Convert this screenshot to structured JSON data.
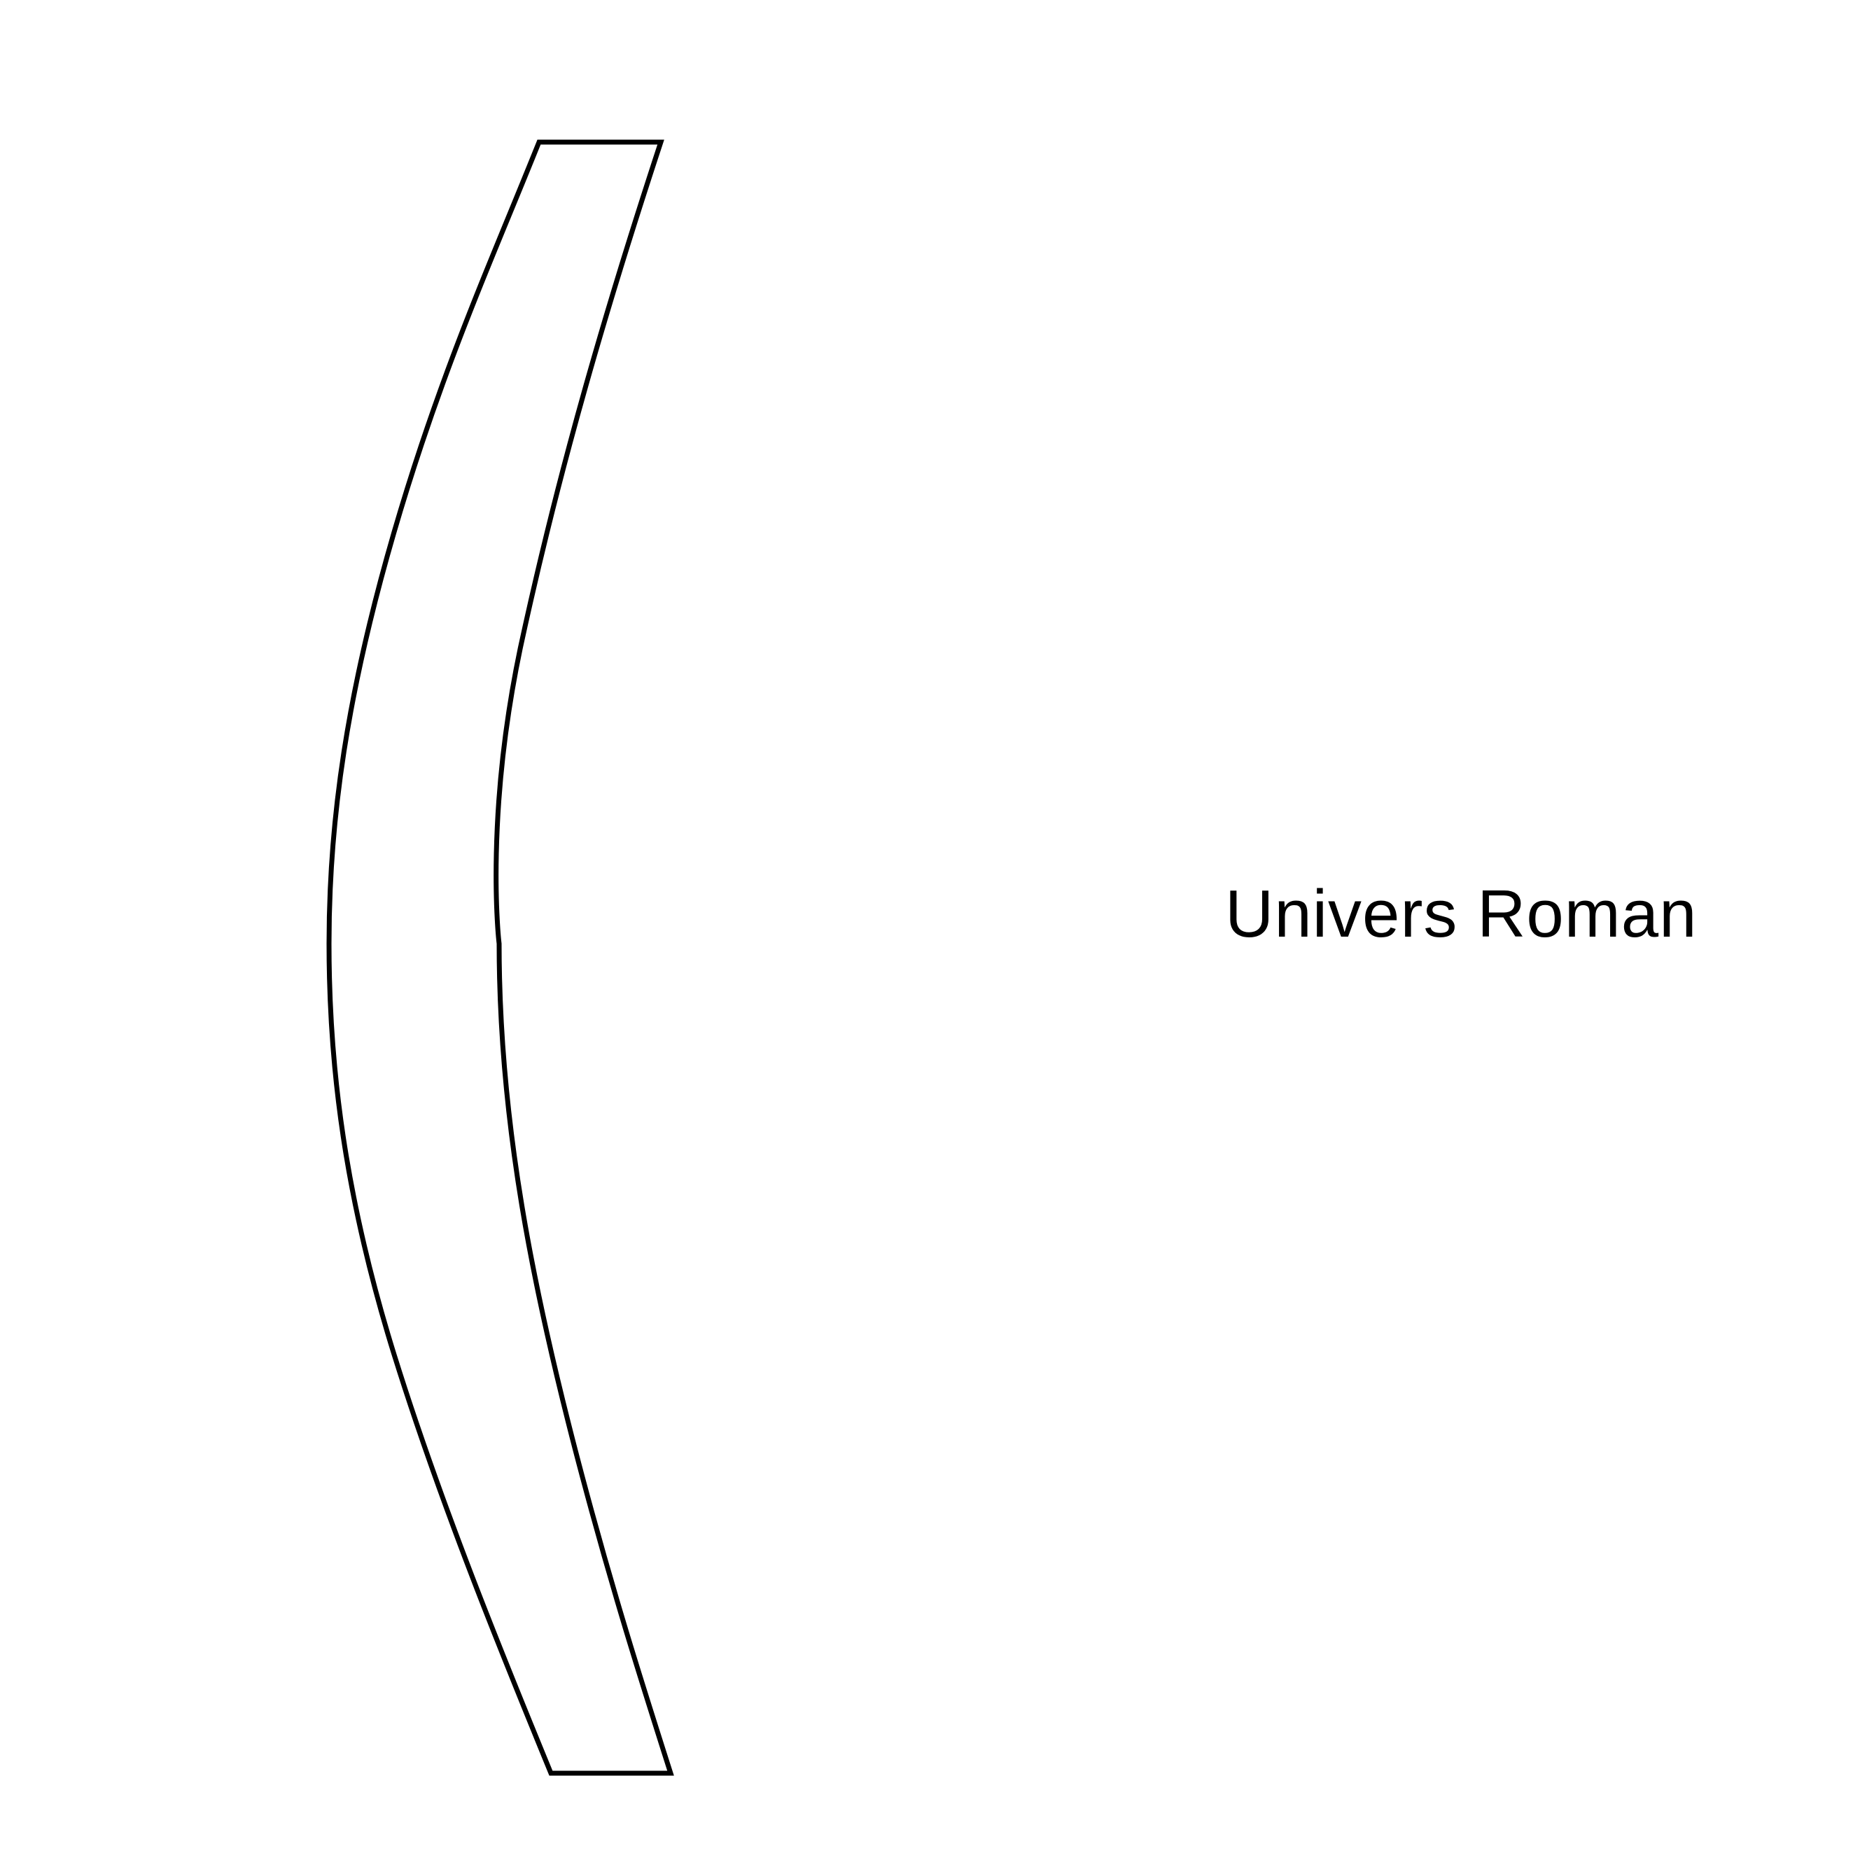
{
  "specimen": {
    "glyph": "(",
    "font_name": "Univers Roman",
    "outline_color": "#000000",
    "text_color": "#000000",
    "background_color": "#ffffff"
  }
}
